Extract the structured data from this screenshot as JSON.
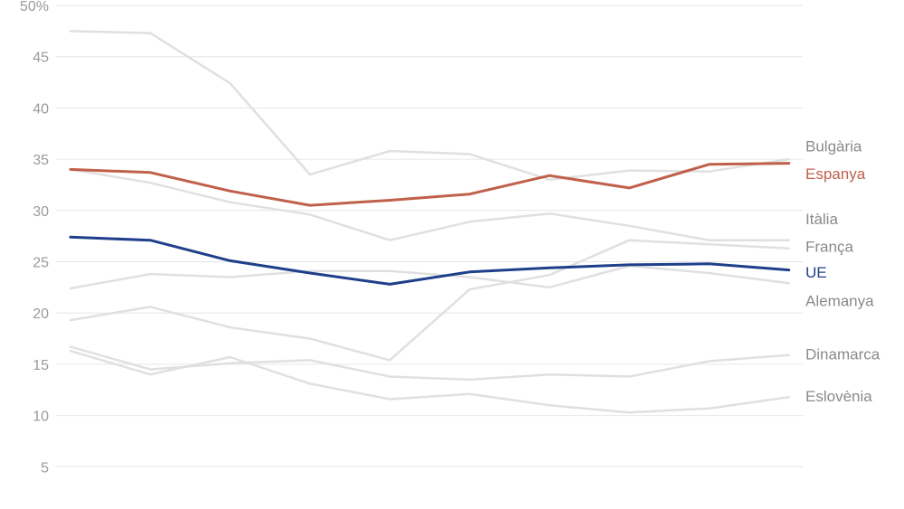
{
  "chart_data": {
    "type": "line",
    "ylim": [
      0,
      50
    ],
    "y_ticks": [
      "50%",
      "45",
      "40",
      "35",
      "30",
      "25",
      "20",
      "15",
      "10",
      "5"
    ],
    "grid": true,
    "x_count": 10,
    "series": [
      {
        "name": "Bulgària",
        "color": "#e0e0e0",
        "highlight": false,
        "values": [
          47.5,
          47.3,
          42.4,
          33.5,
          35.8,
          35.5,
          33.0,
          33.9,
          33.8,
          35.0
        ]
      },
      {
        "name": "Espanya",
        "color": "#c0604a",
        "highlight": true,
        "values": [
          34.0,
          33.7,
          31.9,
          30.5,
          31.0,
          31.6,
          33.4,
          32.2,
          34.5,
          34.6
        ]
      },
      {
        "name": "Itàlia",
        "color": "#e0e0e0",
        "highlight": false,
        "values": [
          34.0,
          32.7,
          30.8,
          29.6,
          27.1,
          28.9,
          29.7,
          28.5,
          27.1,
          27.1
        ]
      },
      {
        "name": "França",
        "color": "#e0e0e0",
        "highlight": false,
        "values": [
          19.3,
          20.6,
          18.6,
          17.5,
          15.4,
          22.3,
          23.7,
          27.1,
          26.7,
          26.3
        ]
      },
      {
        "name": "UE",
        "color": "#1f3f8a",
        "highlight": true,
        "values": [
          27.4,
          27.1,
          25.1,
          23.9,
          22.8,
          24.0,
          24.4,
          24.7,
          24.8,
          24.2
        ]
      },
      {
        "name": "Alemanya",
        "color": "#e0e0e0",
        "highlight": false,
        "values": [
          22.4,
          23.8,
          23.5,
          24.1,
          24.1,
          23.5,
          22.5,
          24.6,
          23.9,
          22.9
        ]
      },
      {
        "name": "Dinamarca",
        "color": "#e0e0e0",
        "highlight": false,
        "values": [
          16.7,
          14.5,
          15.1,
          15.4,
          13.8,
          13.5,
          14.0,
          13.8,
          15.3,
          15.9
        ]
      },
      {
        "name": "Eslovènia",
        "color": "#e0e0e0",
        "highlight": false,
        "values": [
          16.3,
          14.0,
          15.7,
          13.1,
          11.6,
          12.1,
          11.0,
          10.3,
          10.7,
          11.8
        ]
      }
    ],
    "series_labels": [
      {
        "name": "Bulgària",
        "text": "Bulgària",
        "color": "#8a8a8a",
        "label_y": 36.3
      },
      {
        "name": "Espanya",
        "text": "Espanya",
        "color": "#c0604a",
        "label_y": 33.6
      },
      {
        "name": "Itàlia",
        "text": "Itàlia",
        "color": "#8a8a8a",
        "label_y": 29.2
      },
      {
        "name": "França",
        "text": "França",
        "color": "#8a8a8a",
        "label_y": 26.5
      },
      {
        "name": "UE",
        "text": "UE",
        "color": "#1f3f8a",
        "label_y": 24.0
      },
      {
        "name": "Alemanya",
        "text": "Alemanya",
        "color": "#8a8a8a",
        "label_y": 21.2
      },
      {
        "name": "Dinamarca",
        "text": "Dinamarca",
        "color": "#8a8a8a",
        "label_y": 16.0
      },
      {
        "name": "Eslovènia",
        "text": "Eslovènia",
        "color": "#8a8a8a",
        "label_y": 11.9
      }
    ]
  }
}
